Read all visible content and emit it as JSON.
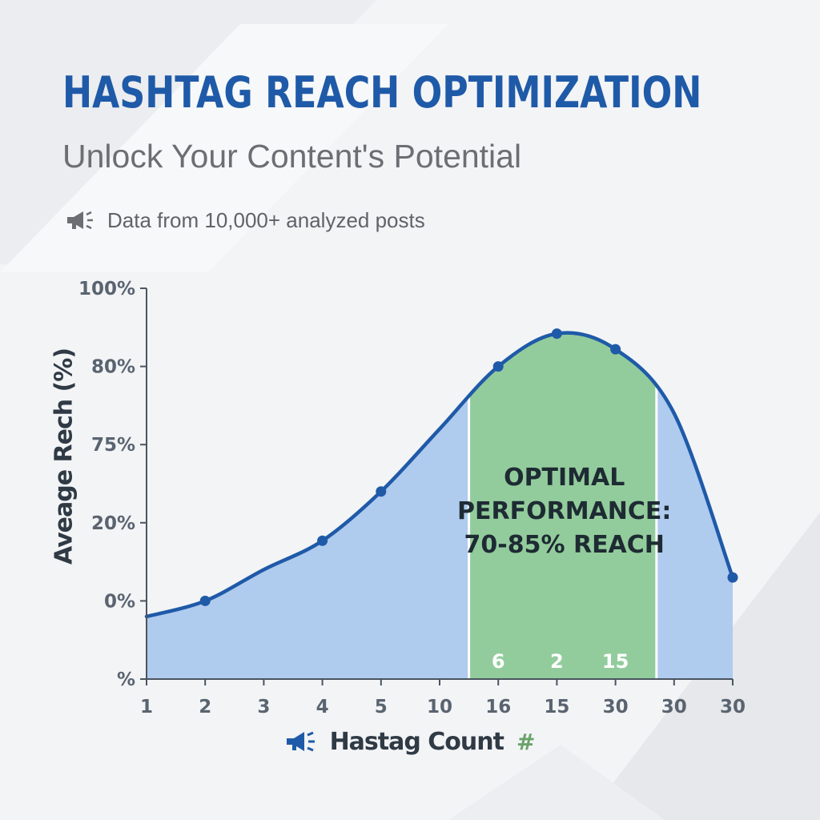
{
  "header": {
    "title": "HASHTAG REACH OPTIMIZATION",
    "subtitle": "Unlock Your Content's Potential",
    "note": "Data from 10,000+ analyzed posts",
    "note_icon": "megaphone-icon"
  },
  "colors": {
    "title": "#1f5aa8",
    "line": "#1f5aa8",
    "area": "#afcbee",
    "optimal_zone": "#93cc9c",
    "hash": "#6aa36a"
  },
  "chart_data": {
    "type": "area",
    "x_ticks": [
      "1",
      "2",
      "3",
      "4",
      "5",
      "10",
      "16",
      "15",
      "30",
      "30",
      "30"
    ],
    "y_ticks": [
      "%",
      "0%",
      "20%",
      "75%",
      "80%",
      "100%"
    ],
    "series": [
      {
        "values": [
          -0.2,
          0.0,
          0.4,
          0.77,
          1.4,
          2.2,
          3.0,
          3.42,
          3.22,
          2.4,
          0.3
        ],
        "markers": [
          1,
          3,
          4,
          6,
          7,
          8,
          10
        ]
      }
    ],
    "ylim": [
      -1,
      4
    ],
    "xlabel": "Hastag Count",
    "xlabel_suffix": "#",
    "xlabel_icon": "megaphone-icon",
    "ylabel": "Aveage Rech (%)",
    "highlight": {
      "x_from": 5.5,
      "x_to": 8.7,
      "label_lines": [
        "OPTIMAL",
        "PERFORMANCE:",
        "70-85% REACH"
      ],
      "values": [
        "6",
        "2",
        "15"
      ],
      "value_positions": [
        6,
        7,
        8
      ]
    },
    "grid": false
  }
}
